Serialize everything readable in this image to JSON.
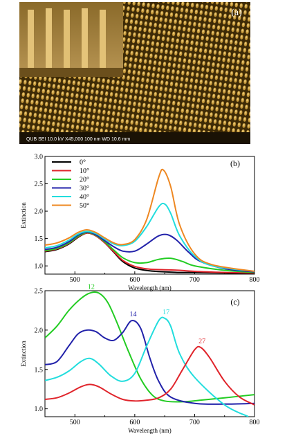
{
  "sem_panel": {
    "panel_label": "(a)",
    "scale_bar_text": "QUB     SEI     10.0 kV   X45,000     100 nm   WD 10.6 mm"
  },
  "chart_data": [
    {
      "type": "line",
      "panel_label": "(b)",
      "xlabel": "Wavelength (nm)",
      "ylabel": "Extinction",
      "xlim": [
        450,
        800
      ],
      "ylim": [
        0.85,
        3.0
      ],
      "xticks": [
        500,
        600,
        700,
        800
      ],
      "yticks": [
        1.0,
        1.5,
        2.0,
        2.5,
        3.0
      ],
      "legend_placement": "top-left",
      "series": [
        {
          "name": "0°",
          "color": "#000000",
          "x": [
            450,
            470,
            490,
            505,
            520,
            535,
            550,
            565,
            580,
            600,
            625,
            650,
            675,
            700,
            750,
            800
          ],
          "y": [
            1.26,
            1.3,
            1.4,
            1.52,
            1.6,
            1.55,
            1.42,
            1.25,
            1.08,
            0.96,
            0.91,
            0.89,
            0.88,
            0.88,
            0.87,
            0.86
          ]
        },
        {
          "name": "10°",
          "color": "#e0242b",
          "x": [
            450,
            470,
            490,
            505,
            520,
            535,
            550,
            565,
            580,
            600,
            625,
            650,
            675,
            700,
            750,
            800
          ],
          "y": [
            1.27,
            1.31,
            1.41,
            1.53,
            1.6,
            1.55,
            1.42,
            1.26,
            1.1,
            0.99,
            0.94,
            0.93,
            0.92,
            0.9,
            0.88,
            0.87
          ]
        },
        {
          "name": "20°",
          "color": "#22cc22",
          "x": [
            450,
            470,
            490,
            505,
            520,
            535,
            550,
            565,
            580,
            600,
            620,
            640,
            660,
            680,
            700,
            750,
            800
          ],
          "y": [
            1.28,
            1.32,
            1.42,
            1.54,
            1.61,
            1.56,
            1.44,
            1.29,
            1.15,
            1.06,
            1.06,
            1.12,
            1.14,
            1.08,
            1.0,
            0.92,
            0.88
          ]
        },
        {
          "name": "30°",
          "color": "#2222aa",
          "x": [
            450,
            470,
            490,
            505,
            520,
            535,
            550,
            565,
            580,
            600,
            620,
            640,
            655,
            670,
            690,
            710,
            750,
            800
          ],
          "y": [
            1.3,
            1.34,
            1.44,
            1.56,
            1.62,
            1.57,
            1.46,
            1.35,
            1.27,
            1.27,
            1.4,
            1.55,
            1.57,
            1.47,
            1.25,
            1.08,
            0.95,
            0.89
          ]
        },
        {
          "name": "40°",
          "color": "#22dddd",
          "x": [
            450,
            470,
            490,
            505,
            520,
            535,
            550,
            565,
            580,
            600,
            620,
            640,
            650,
            660,
            675,
            700,
            730,
            800
          ],
          "y": [
            1.33,
            1.37,
            1.47,
            1.58,
            1.63,
            1.59,
            1.49,
            1.4,
            1.37,
            1.45,
            1.72,
            2.08,
            2.13,
            1.96,
            1.55,
            1.18,
            1.0,
            0.9
          ]
        },
        {
          "name": "50°",
          "color": "#ee8822",
          "x": [
            450,
            470,
            490,
            505,
            520,
            535,
            550,
            565,
            580,
            600,
            620,
            640,
            648,
            660,
            675,
            700,
            730,
            800
          ],
          "y": [
            1.38,
            1.42,
            1.51,
            1.61,
            1.66,
            1.61,
            1.51,
            1.42,
            1.39,
            1.48,
            1.85,
            2.62,
            2.75,
            2.45,
            1.75,
            1.22,
            1.02,
            0.9
          ]
        }
      ]
    },
    {
      "type": "line",
      "panel_label": "(c)",
      "xlabel": "Wavelength (nm)",
      "ylabel": "Extinction",
      "xlim": [
        450,
        800
      ],
      "ylim": [
        0.9,
        2.5
      ],
      "xticks": [
        500,
        600,
        700,
        800
      ],
      "yticks": [
        1.0,
        1.5,
        2.0,
        2.5
      ],
      "series": [
        {
          "name": "12",
          "color": "#22cc22",
          "x": [
            450,
            470,
            490,
            510,
            525,
            540,
            555,
            570,
            590,
            610,
            630,
            650,
            680,
            710,
            750,
            800
          ],
          "y": [
            1.9,
            2.05,
            2.25,
            2.4,
            2.47,
            2.47,
            2.35,
            2.1,
            1.72,
            1.38,
            1.17,
            1.1,
            1.09,
            1.11,
            1.14,
            1.18
          ]
        },
        {
          "name": "14",
          "color": "#2222aa",
          "x": [
            450,
            470,
            490,
            505,
            520,
            535,
            550,
            565,
            580,
            595,
            610,
            625,
            640,
            660,
            700,
            750,
            800
          ],
          "y": [
            1.56,
            1.6,
            1.8,
            1.95,
            2.0,
            1.98,
            1.9,
            1.87,
            1.97,
            2.12,
            2.02,
            1.65,
            1.35,
            1.15,
            1.07,
            1.06,
            1.07
          ]
        },
        {
          "name": "17",
          "color": "#22dddd",
          "x": [
            450,
            470,
            490,
            510,
            525,
            540,
            560,
            580,
            600,
            620,
            640,
            650,
            660,
            675,
            700,
            750,
            790
          ],
          "y": [
            1.36,
            1.4,
            1.48,
            1.6,
            1.64,
            1.57,
            1.42,
            1.35,
            1.45,
            1.8,
            2.12,
            2.15,
            2.05,
            1.7,
            1.4,
            1.05,
            0.9
          ]
        },
        {
          "name": "27",
          "color": "#e0242b",
          "x": [
            450,
            470,
            490,
            510,
            525,
            540,
            560,
            580,
            600,
            620,
            640,
            660,
            680,
            700,
            710,
            725,
            750,
            775,
            800
          ],
          "y": [
            1.12,
            1.14,
            1.2,
            1.28,
            1.31,
            1.28,
            1.19,
            1.12,
            1.1,
            1.11,
            1.14,
            1.25,
            1.5,
            1.75,
            1.78,
            1.65,
            1.35,
            1.15,
            1.05
          ]
        }
      ]
    }
  ]
}
